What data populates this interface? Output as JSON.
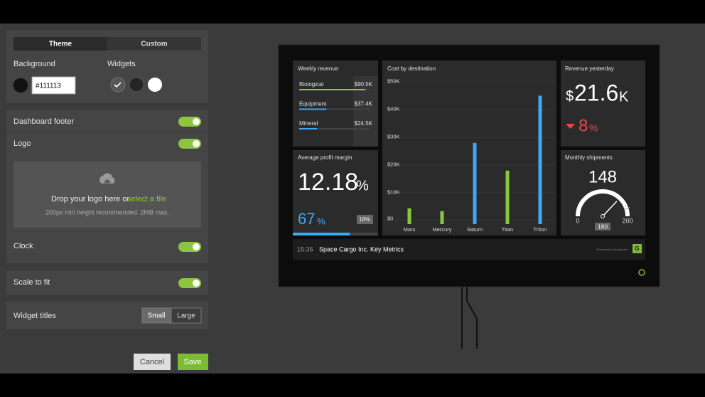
{
  "settings_panel": {
    "tabs": [
      "Theme",
      "Custom"
    ],
    "background_label": "Background",
    "background_hex": "#111113",
    "widgets_label": "Widgets",
    "dashboard_footer": "Dashboard footer",
    "logo": "Logo",
    "drop_text": "Drop your logo here or",
    "drop_link": "select a file",
    "drop_hint": "200px min height recommended. 2MB max.",
    "clock": "Clock",
    "scale_to_fit": "Scale to fit",
    "widget_titles": "Widget titles",
    "title_sizes": [
      "Small",
      "Large"
    ],
    "cancel": "Cancel",
    "save": "Save"
  },
  "dashboard": {
    "weekly_revenue": {
      "title": "Weekly revenue",
      "items": [
        {
          "name": "Biological",
          "value": 90500,
          "value_label": "$90.5K",
          "color": "#8cc63f"
        },
        {
          "name": "Equipment",
          "value": 37400,
          "value_label": "$37.4K",
          "color": "#3fa9f5"
        },
        {
          "name": "Mineral",
          "value": 24500,
          "value_label": "$24.5K",
          "color": "#3fa9f5"
        }
      ]
    },
    "revenue_yesterday": {
      "title": "Revenue yesterday",
      "currency": "$",
      "value": 21.6,
      "suffix": "K",
      "change": 8,
      "change_unit": "%"
    },
    "average_profit_margin": {
      "title": "Average profit margin",
      "value": 12.18,
      "unit": "%",
      "current": 67,
      "comparison": {
        "value": 18,
        "label": "18%"
      }
    },
    "monthly_shipments": {
      "title": "Monthly shipments",
      "value": 148,
      "min": 0,
      "max": 200,
      "target": 180
    },
    "footer": {
      "time": "15:36",
      "name": "Space Cargo Inc. Key Metrics",
      "powered_by": "Powered by Geckoboard",
      "logo": "G"
    }
  },
  "chart_data": {
    "type": "bar",
    "title": "Cost by destination",
    "categories": [
      "Mars",
      "Mercury",
      "Saturn",
      "Titan",
      "Triton"
    ],
    "values": [
      4400,
      3400,
      28000,
      18000,
      45000
    ],
    "colors": [
      "#8cc63f",
      "#8cc63f",
      "#3fa9f5",
      "#8cc63f",
      "#3fa9f5"
    ],
    "ylim": [
      0,
      50000
    ],
    "yticks": [
      {
        "value": 0,
        "label": "$0"
      },
      {
        "value": 10000,
        "label": "$10K"
      },
      {
        "value": 20000,
        "label": "$20K"
      },
      {
        "value": 30000,
        "label": "$30K"
      },
      {
        "value": 40000,
        "label": "$40K"
      },
      {
        "value": 50000,
        "label": "$50K"
      }
    ],
    "grid": true
  }
}
